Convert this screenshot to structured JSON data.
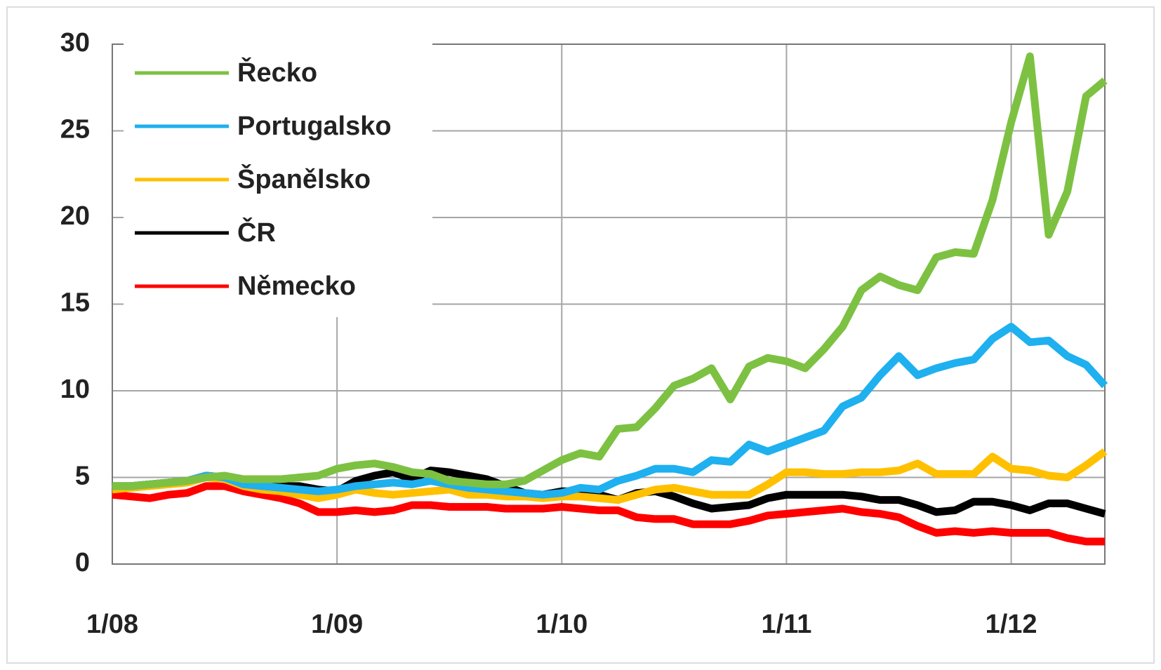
{
  "chart_data": {
    "type": "line",
    "categories": [
      "1/08",
      null,
      null,
      null,
      null,
      null,
      null,
      null,
      null,
      null,
      null,
      null,
      "1/09",
      null,
      null,
      null,
      null,
      null,
      null,
      null,
      null,
      null,
      null,
      null,
      "1/10",
      null,
      null,
      null,
      null,
      null,
      null,
      null,
      null,
      null,
      null,
      null,
      "1/11",
      null,
      null,
      null,
      null,
      null,
      null,
      null,
      null,
      null,
      null,
      null,
      "1/12",
      null,
      null,
      null,
      null,
      null
    ],
    "series": [
      {
        "name": "Řecko",
        "color": "#7dc142",
        "values": [
          4.5,
          4.5,
          4.6,
          4.7,
          4.8,
          5.0,
          5.1,
          4.9,
          4.9,
          4.9,
          5.0,
          5.1,
          5.5,
          5.7,
          5.8,
          5.6,
          5.3,
          5.2,
          4.8,
          4.7,
          4.6,
          4.6,
          4.8,
          5.4,
          6.0,
          6.4,
          6.2,
          7.8,
          7.9,
          9.0,
          10.3,
          10.7,
          11.3,
          9.5,
          11.4,
          11.9,
          11.7,
          11.3,
          12.4,
          13.7,
          15.8,
          16.6,
          16.1,
          15.8,
          17.7,
          18.0,
          17.9,
          21.0,
          25.5,
          29.3,
          19.0,
          21.5,
          27.0,
          27.9
        ]
      },
      {
        "name": "Portugalsko",
        "color": "#1eb0ef",
        "values": [
          4.5,
          4.5,
          4.6,
          4.7,
          4.8,
          5.1,
          5.0,
          4.6,
          4.5,
          4.4,
          4.3,
          4.2,
          4.3,
          4.5,
          4.6,
          4.7,
          4.6,
          4.8,
          4.6,
          4.4,
          4.3,
          4.2,
          4.1,
          4.0,
          4.1,
          4.4,
          4.3,
          4.8,
          5.1,
          5.5,
          5.5,
          5.3,
          6.0,
          5.9,
          6.9,
          6.5,
          6.9,
          7.3,
          7.7,
          9.1,
          9.6,
          10.9,
          12.0,
          10.9,
          11.3,
          11.6,
          11.8,
          13.0,
          13.7,
          12.8,
          12.9,
          12.0,
          11.5,
          10.3
        ]
      },
      {
        "name": "Španělsko",
        "color": "#ffc000",
        "values": [
          4.3,
          4.4,
          4.5,
          4.6,
          4.7,
          5.0,
          4.9,
          4.5,
          4.3,
          4.2,
          4.0,
          3.8,
          4.0,
          4.3,
          4.1,
          4.0,
          4.1,
          4.2,
          4.3,
          4.0,
          4.0,
          3.9,
          3.9,
          3.8,
          3.9,
          3.9,
          3.8,
          3.7,
          4.0,
          4.3,
          4.4,
          4.2,
          4.0,
          4.0,
          4.0,
          4.6,
          5.3,
          5.3,
          5.2,
          5.2,
          5.3,
          5.3,
          5.4,
          5.8,
          5.2,
          5.2,
          5.2,
          6.2,
          5.5,
          5.4,
          5.1,
          5.0,
          5.7,
          6.5
        ]
      },
      {
        "name": "ČR",
        "color": "#000000",
        "values": [
          4.5,
          4.5,
          4.6,
          4.7,
          4.8,
          5.1,
          5.0,
          4.7,
          4.5,
          4.5,
          4.5,
          4.3,
          4.2,
          4.8,
          5.1,
          5.3,
          4.9,
          5.4,
          5.3,
          5.1,
          4.9,
          4.5,
          4.1,
          4.0,
          4.2,
          4.2,
          4.0,
          3.7,
          4.1,
          4.2,
          3.9,
          3.5,
          3.2,
          3.3,
          3.4,
          3.8,
          4.0,
          4.0,
          4.0,
          4.0,
          3.9,
          3.7,
          3.7,
          3.4,
          3.0,
          3.1,
          3.6,
          3.6,
          3.4,
          3.1,
          3.5,
          3.5,
          3.2,
          2.9
        ]
      },
      {
        "name": "Německo",
        "color": "#ff0000",
        "values": [
          4.0,
          3.9,
          3.8,
          4.0,
          4.1,
          4.5,
          4.5,
          4.2,
          4.0,
          3.8,
          3.5,
          3.0,
          3.0,
          3.1,
          3.0,
          3.1,
          3.4,
          3.4,
          3.3,
          3.3,
          3.3,
          3.2,
          3.2,
          3.2,
          3.3,
          3.2,
          3.1,
          3.1,
          2.7,
          2.6,
          2.6,
          2.3,
          2.3,
          2.3,
          2.5,
          2.8,
          2.9,
          3.0,
          3.1,
          3.2,
          3.0,
          2.9,
          2.7,
          2.2,
          1.8,
          1.9,
          1.8,
          1.9,
          1.8,
          1.8,
          1.8,
          1.5,
          1.3,
          1.3
        ]
      }
    ],
    "ylim": [
      0,
      30
    ],
    "yticks": [
      0,
      5,
      10,
      15,
      20,
      25,
      30
    ],
    "grid": true,
    "legend": "upper left"
  }
}
